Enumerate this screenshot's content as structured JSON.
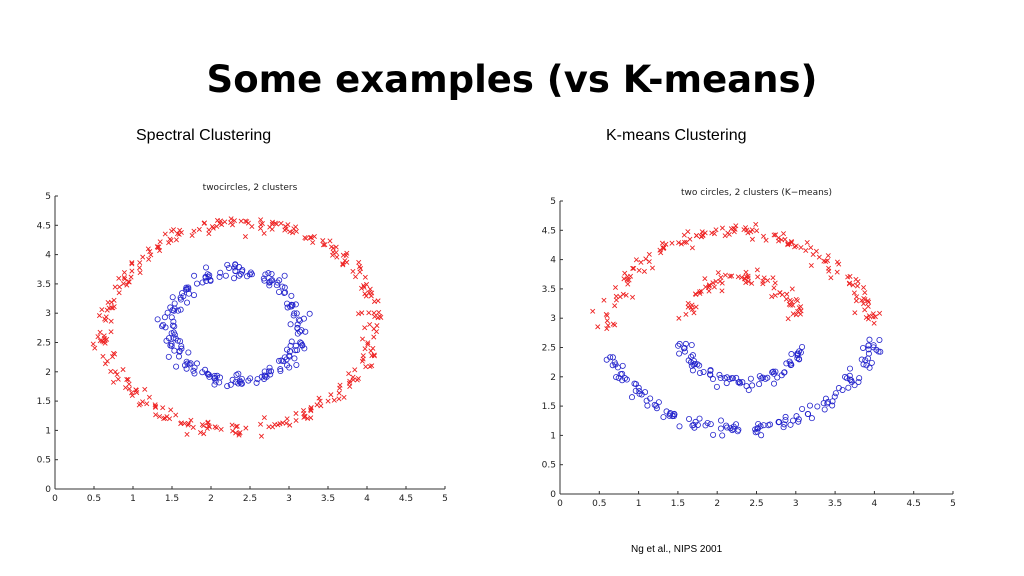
{
  "slide": {
    "title": "Some examples (vs K-means)",
    "footer": "Ng et al., NIPS 2001"
  },
  "chart_data": [
    {
      "type": "scatter",
      "caption": "Spectral Clustering",
      "title": "twocircles, 2 clusters",
      "xlim": [
        0,
        5
      ],
      "ylim": [
        0,
        5
      ],
      "xticks": [
        0,
        0.5,
        1,
        1.5,
        2,
        2.5,
        3,
        3.5,
        4,
        4.5,
        5
      ],
      "yticks": [
        0,
        0.5,
        1,
        1.5,
        2,
        2.5,
        3,
        3.5,
        4,
        4.5,
        5
      ],
      "tick_labels": [
        "0",
        "0.5",
        "1",
        "1.5",
        "2",
        "2.5",
        "3",
        "3.5",
        "4",
        "4.5",
        "5"
      ],
      "grid": false,
      "colors": {
        "outer": "#ee2222",
        "inner": "#2222cc"
      },
      "series": [
        {
          "marker": "x",
          "color": "#ee2222",
          "center": [
            2.3,
            2.85
          ],
          "radius": [
            1.55,
            1.75
          ],
          "points": [
            [
              4.1,
              2.95
            ],
            [
              4.02,
              3.35
            ],
            [
              3.88,
              3.7
            ],
            [
              3.7,
              3.98
            ],
            [
              3.45,
              4.22
            ],
            [
              3.15,
              4.38
            ],
            [
              2.85,
              4.47
            ],
            [
              2.5,
              4.55
            ],
            [
              2.18,
              4.55
            ],
            [
              1.85,
              4.48
            ],
            [
              1.52,
              4.32
            ],
            [
              1.25,
              4.1
            ],
            [
              1.0,
              3.8
            ],
            [
              0.82,
              3.45
            ],
            [
              0.68,
              3.08
            ],
            [
              0.62,
              2.7
            ],
            [
              0.66,
              2.32
            ],
            [
              0.8,
              1.95
            ],
            [
              1.02,
              1.62
            ],
            [
              1.28,
              1.35
            ],
            [
              1.58,
              1.15
            ],
            [
              1.9,
              1.05
            ],
            [
              2.25,
              1.02
            ],
            [
              2.6,
              1.05
            ],
            [
              2.95,
              1.15
            ],
            [
              3.25,
              1.32
            ],
            [
              3.55,
              1.55
            ],
            [
              3.8,
              1.85
            ],
            [
              3.98,
              2.2
            ],
            [
              4.08,
              2.57
            ]
          ]
        },
        {
          "marker": "o",
          "color": "#2222cc",
          "center": [
            2.3,
            2.75
          ],
          "radius": [
            0.8,
            0.9
          ],
          "points": [
            [
              3.15,
              2.75
            ],
            [
              3.1,
              3.05
            ],
            [
              2.98,
              3.32
            ],
            [
              2.8,
              3.55
            ],
            [
              2.55,
              3.68
            ],
            [
              2.28,
              3.72
            ],
            [
              2.02,
              3.65
            ],
            [
              1.78,
              3.5
            ],
            [
              1.6,
              3.28
            ],
            [
              1.5,
              3.02
            ],
            [
              1.48,
              2.75
            ],
            [
              1.52,
              2.48
            ],
            [
              1.62,
              2.22
            ],
            [
              1.8,
              2.0
            ],
            [
              2.05,
              1.88
            ],
            [
              2.32,
              1.82
            ],
            [
              2.58,
              1.88
            ],
            [
              2.82,
              2.02
            ],
            [
              3.0,
              2.22
            ],
            [
              3.12,
              2.47
            ]
          ]
        }
      ]
    },
    {
      "type": "scatter",
      "caption": "K-means Clustering",
      "title": "two circles, 2 clusters (K−means)",
      "xlim": [
        0,
        5
      ],
      "ylim": [
        0,
        5
      ],
      "xticks": [
        0,
        0.5,
        1,
        1.5,
        2,
        2.5,
        3,
        3.5,
        4,
        4.5,
        5
      ],
      "yticks": [
        0,
        0.5,
        1,
        1.5,
        2,
        2.5,
        3,
        3.5,
        4,
        4.5,
        5
      ],
      "tick_labels": [
        "0",
        "0.5",
        "1",
        "1.5",
        "2",
        "2.5",
        "3",
        "3.5",
        "4",
        "4.5",
        "5"
      ],
      "grid": false,
      "colors": {
        "top": "#ee2222",
        "bottom": "#2222cc"
      },
      "series": [
        {
          "marker": "x",
          "color": "#ee2222",
          "points": [
            [
              0.62,
              2.85
            ],
            [
              0.7,
              3.25
            ],
            [
              0.85,
              3.62
            ],
            [
              1.05,
              3.95
            ],
            [
              1.3,
              4.2
            ],
            [
              1.6,
              4.38
            ],
            [
              1.92,
              4.48
            ],
            [
              2.25,
              4.5
            ],
            [
              2.58,
              4.45
            ],
            [
              2.9,
              4.32
            ],
            [
              3.2,
              4.12
            ],
            [
              3.48,
              3.88
            ],
            [
              3.72,
              3.58
            ],
            [
              3.88,
              3.22
            ],
            [
              3.98,
              2.95
            ],
            [
              1.6,
              3.05
            ],
            [
              1.72,
              3.35
            ],
            [
              1.92,
              3.58
            ],
            [
              2.18,
              3.72
            ],
            [
              2.45,
              3.72
            ],
            [
              2.72,
              3.58
            ],
            [
              2.92,
              3.35
            ],
            [
              3.05,
              3.05
            ]
          ]
        },
        {
          "marker": "o",
          "color": "#2222cc",
          "points": [
            [
              0.65,
              2.4
            ],
            [
              0.8,
              2.05
            ],
            [
              1.0,
              1.75
            ],
            [
              1.25,
              1.48
            ],
            [
              1.55,
              1.28
            ],
            [
              1.88,
              1.15
            ],
            [
              2.22,
              1.1
            ],
            [
              2.55,
              1.12
            ],
            [
              2.88,
              1.22
            ],
            [
              3.18,
              1.4
            ],
            [
              3.48,
              1.65
            ],
            [
              3.72,
              1.95
            ],
            [
              3.88,
              2.3
            ],
            [
              4.0,
              2.6
            ],
            [
              1.55,
              2.62
            ],
            [
              1.65,
              2.32
            ],
            [
              1.85,
              2.08
            ],
            [
              2.1,
              1.92
            ],
            [
              2.38,
              1.88
            ],
            [
              2.65,
              1.95
            ],
            [
              2.88,
              2.15
            ],
            [
              3.05,
              2.45
            ]
          ]
        }
      ]
    }
  ]
}
